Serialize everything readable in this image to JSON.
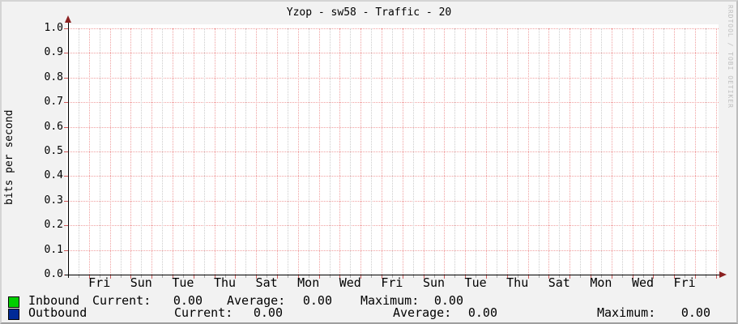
{
  "title": "Yzop - sw58 - Traffic - 20",
  "watermark": "RRDTOOL / TOBI OETIKER",
  "y_axis": {
    "label": "bits per second",
    "ticks": [
      "1.0",
      "0.9",
      "0.8",
      "0.7",
      "0.6",
      "0.5",
      "0.4",
      "0.3",
      "0.2",
      "0.1",
      "0.0"
    ]
  },
  "x_axis": {
    "ticks": [
      "Fri",
      "Sun",
      "Tue",
      "Thu",
      "Sat",
      "Mon",
      "Wed",
      "Fri",
      "Sun",
      "Tue",
      "Thu",
      "Sat",
      "Mon",
      "Wed",
      "Fri"
    ]
  },
  "legend": {
    "rows": [
      {
        "name": "Inbound",
        "color": "#00cf00",
        "stats": [
          {
            "label": "Current:",
            "value": "0.00"
          },
          {
            "label": "Average:",
            "value": "0.00"
          },
          {
            "label": "Maximum:",
            "value": "0.00"
          }
        ]
      },
      {
        "name": "Outbound",
        "color": "#002a97",
        "stats": [
          {
            "label": "Current:",
            "value": "0.00"
          },
          {
            "label": "Average:",
            "value": "0.00"
          },
          {
            "label": "Maximum:",
            "value": "0.00"
          }
        ]
      }
    ]
  },
  "chart_data": {
    "type": "line",
    "title": "Yzop - sw58 - Traffic - 20",
    "xlabel": "",
    "ylabel": "bits per second",
    "ylim": [
      0.0,
      1.0
    ],
    "y_tick_step": 0.1,
    "x_tick_labels": [
      "Fri",
      "Sun",
      "Tue",
      "Thu",
      "Sat",
      "Mon",
      "Wed",
      "Fri",
      "Sun",
      "Tue",
      "Thu",
      "Sat",
      "Mon",
      "Wed",
      "Fri"
    ],
    "x_span_days": 31,
    "grid": "dotted red major gridlines, dotted gray minor gridlines",
    "legend_position": "bottom",
    "series": [
      {
        "name": "Inbound",
        "color": "#00cf00",
        "values": [
          0,
          0
        ],
        "current": 0.0,
        "average": 0.0,
        "maximum": 0.0
      },
      {
        "name": "Outbound",
        "color": "#002a97",
        "values": [
          0,
          0
        ],
        "current": 0.0,
        "average": 0.0,
        "maximum": 0.0
      }
    ]
  }
}
